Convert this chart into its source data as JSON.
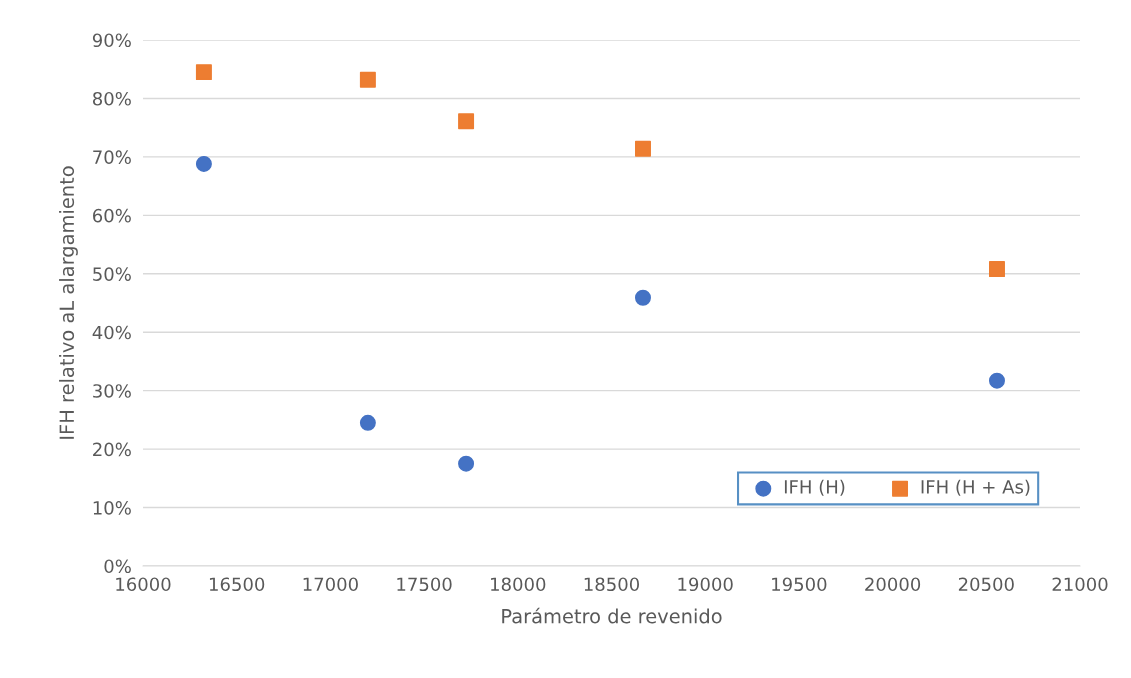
{
  "chart_data": {
    "type": "scatter",
    "xlabel": "Parámetro de revenido",
    "ylabel": "IFH relativo aL alargamiento",
    "xlim": [
      16000,
      21000
    ],
    "xticks": [
      16000,
      16500,
      17000,
      17500,
      18000,
      18500,
      19000,
      19500,
      20000,
      20500,
      21000
    ],
    "ylim": [
      0,
      90
    ],
    "yticks": [
      {
        "value": 0,
        "label": "0%"
      },
      {
        "value": 10,
        "label": "10%"
      },
      {
        "value": 20,
        "label": "20%"
      },
      {
        "value": 30,
        "label": "30%"
      },
      {
        "value": 40,
        "label": "40%"
      },
      {
        "value": 50,
        "label": "50%"
      },
      {
        "value": 60,
        "label": "60%"
      },
      {
        "value": 70,
        "label": "70%"
      },
      {
        "value": 80,
        "label": "80%"
      },
      {
        "value": 90,
        "label": "90%"
      }
    ],
    "grid": "y",
    "legend": "bottom right",
    "series": [
      {
        "name": "IFH (H)",
        "color": "#4472c4",
        "marker": "circle",
        "x": [
          16325,
          17200,
          17724,
          18668,
          20557
        ],
        "values": [
          68.8,
          24.5,
          17.5,
          45.9,
          31.7
        ]
      },
      {
        "name": "IFH (H + As)",
        "color": "#ed7d31",
        "marker": "square",
        "x": [
          16325,
          17200,
          17724,
          18668,
          20557
        ],
        "values": [
          84.5,
          83.2,
          76.1,
          71.4,
          50.8
        ]
      }
    ]
  }
}
